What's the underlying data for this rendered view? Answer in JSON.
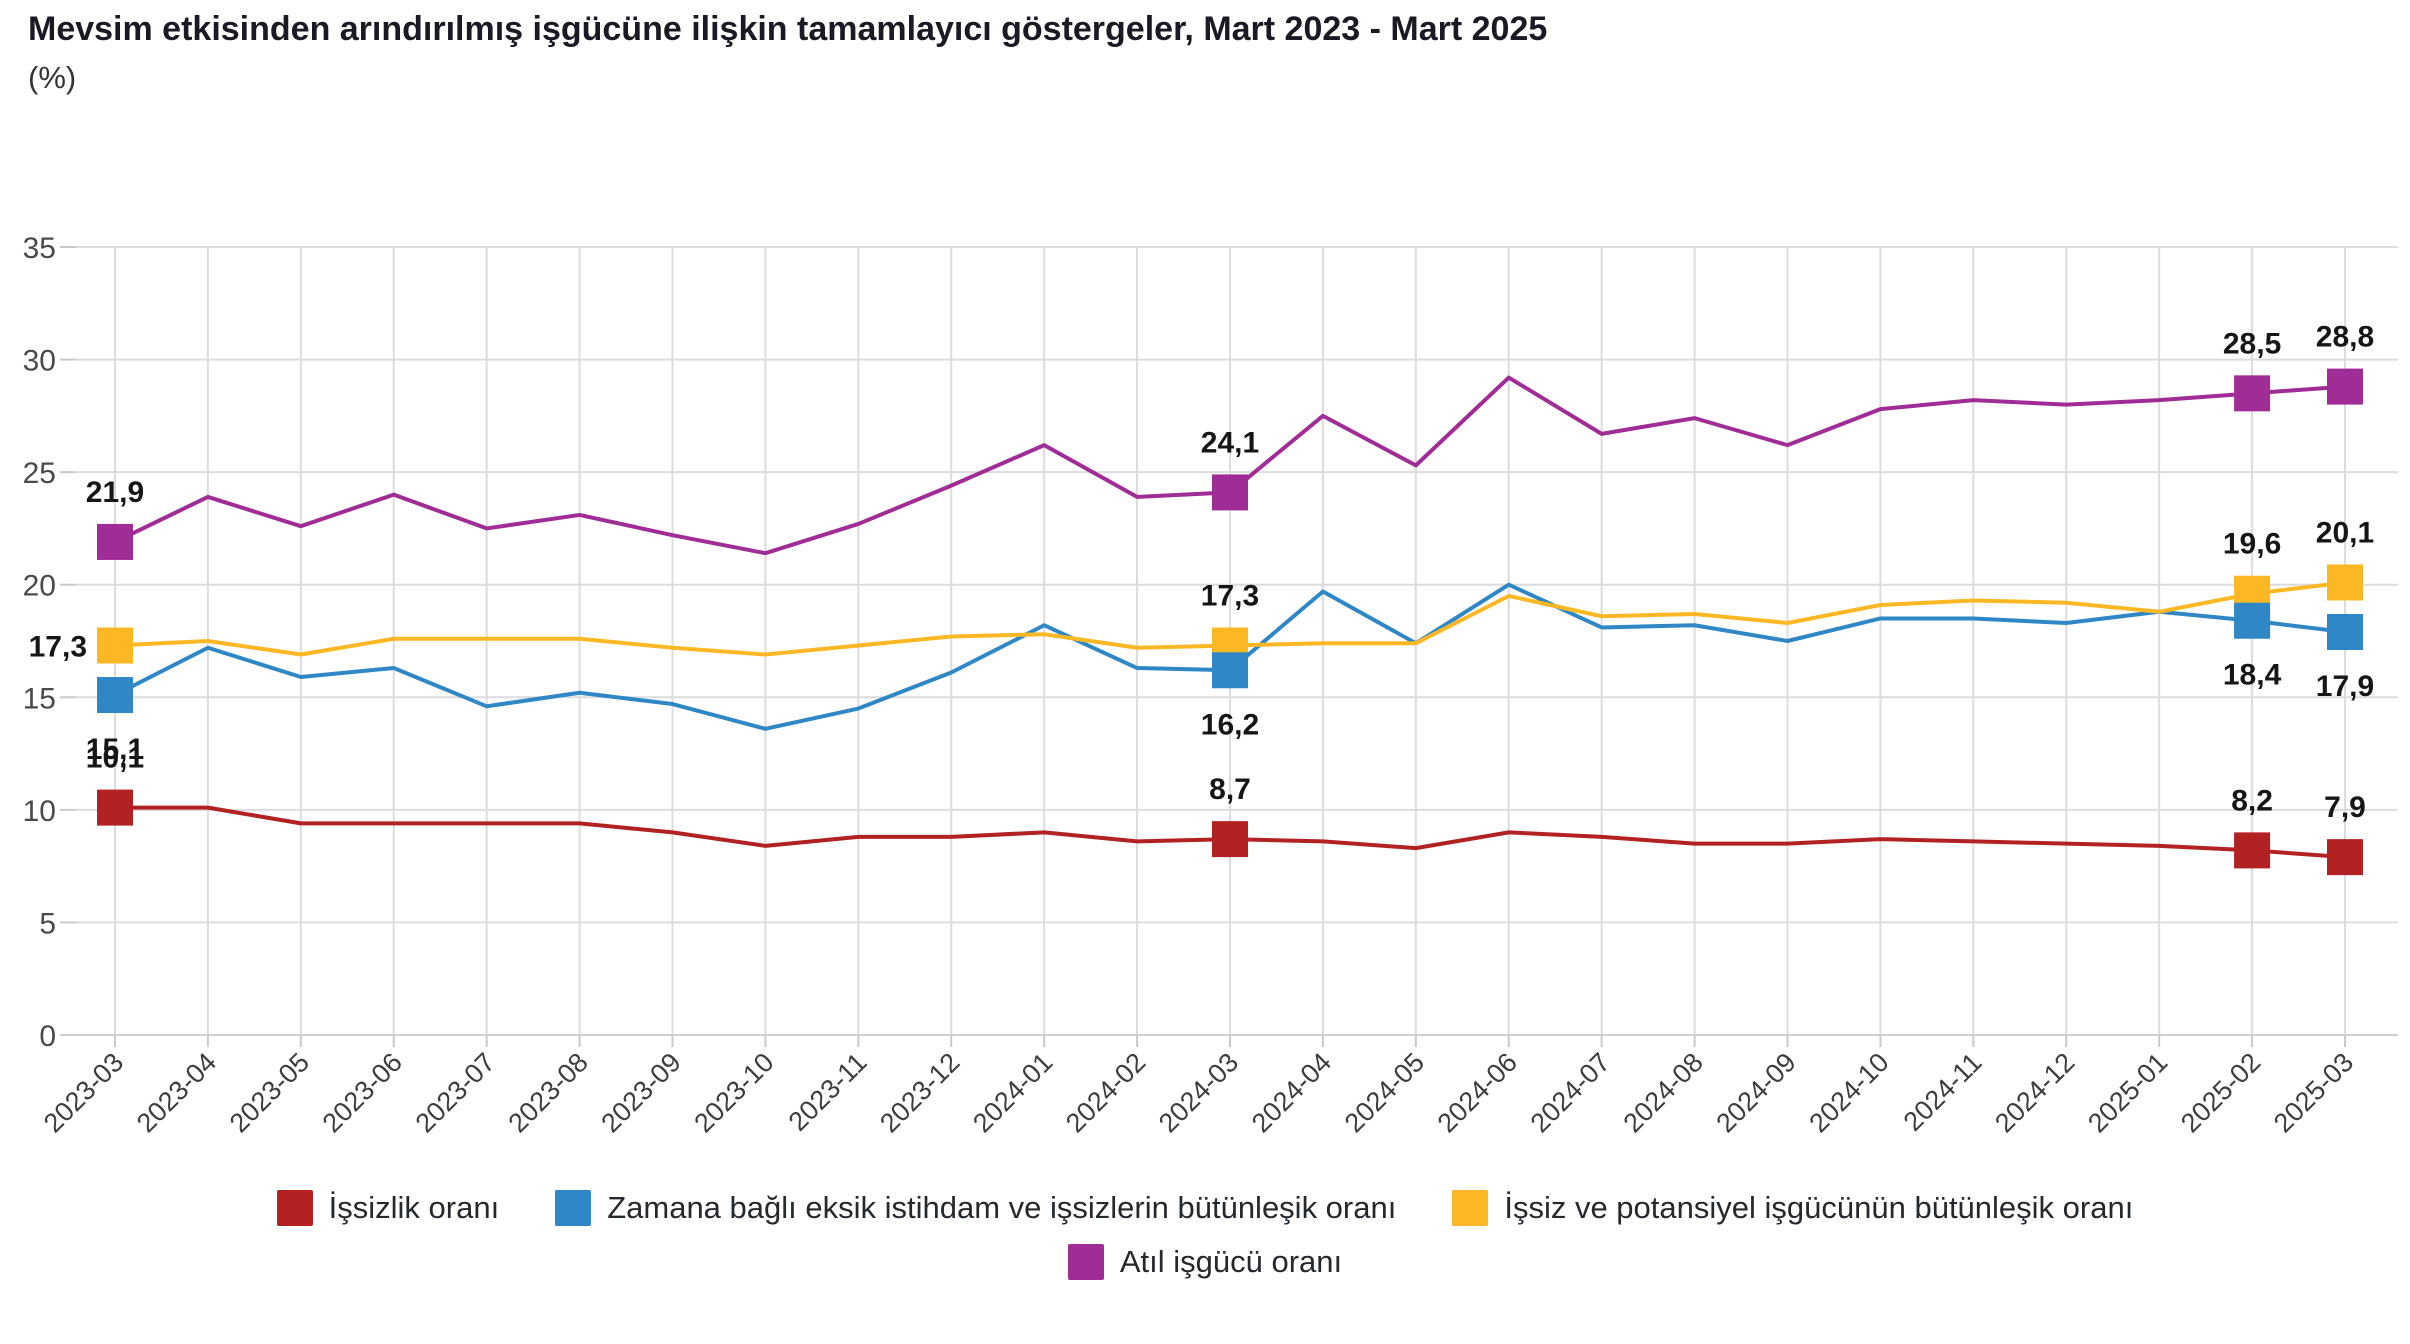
{
  "title": "Mevsim etkisinden arındırılmış işgücüne ilişkin tamamlayıcı göstergeler, Mart 2023 - Mart 2025",
  "subtitle": "(%)",
  "colors": {
    "grid": "#dcdcdc",
    "axis_line": "#cfcfcf",
    "tick": "#c9c9c9",
    "y_tick_text": "#4a4a4a",
    "x_tick_text": "#3d3d3d",
    "data_label_text": "#161616"
  },
  "chart_data": {
    "type": "line",
    "x": [
      "2023-03",
      "2023-04",
      "2023-05",
      "2023-06",
      "2023-07",
      "2023-08",
      "2023-09",
      "2023-10",
      "2023-11",
      "2023-12",
      "2024-01",
      "2024-02",
      "2024-03",
      "2024-04",
      "2024-05",
      "2024-06",
      "2024-07",
      "2024-08",
      "2024-09",
      "2024-10",
      "2024-11",
      "2024-12",
      "2025-01",
      "2025-02",
      "2025-03"
    ],
    "ylim": [
      0,
      35
    ],
    "yticks": [
      0,
      5,
      10,
      15,
      20,
      25,
      30,
      35
    ],
    "grid": true,
    "legend_position": "bottom",
    "series": [
      {
        "name": "İşsizlik oranı",
        "color": "#b22222",
        "values": [
          10.1,
          10.1,
          9.4,
          9.4,
          9.4,
          9.4,
          9.0,
          8.4,
          8.8,
          8.8,
          9.0,
          8.6,
          8.7,
          8.6,
          8.3,
          9.0,
          8.8,
          8.5,
          8.5,
          8.7,
          8.6,
          8.5,
          8.4,
          8.2,
          7.9
        ]
      },
      {
        "name": "Zamana bağlı eksik istihdam ve işsizlerin bütünleşik oranı",
        "color": "#2f87c5",
        "values": [
          15.1,
          17.2,
          15.9,
          16.3,
          14.6,
          15.2,
          14.7,
          13.6,
          14.5,
          16.1,
          18.2,
          16.3,
          16.2,
          19.7,
          17.4,
          20.0,
          18.1,
          18.2,
          17.5,
          18.5,
          18.5,
          18.3,
          18.8,
          18.4,
          17.9
        ]
      },
      {
        "name": "İşsiz ve potansiyel işgücünün bütünleşik oranı",
        "color": "#fbb824",
        "values": [
          17.3,
          17.5,
          16.9,
          17.6,
          17.6,
          17.6,
          17.2,
          16.9,
          17.3,
          17.7,
          17.8,
          17.2,
          17.3,
          17.4,
          17.4,
          19.5,
          18.6,
          18.7,
          18.3,
          19.1,
          19.3,
          19.2,
          18.8,
          19.6,
          20.1
        ]
      },
      {
        "name": "Atıl işgücü oranı",
        "color": "#a02c96",
        "values": [
          21.9,
          23.9,
          22.6,
          24.0,
          22.5,
          23.1,
          22.2,
          21.4,
          22.7,
          24.4,
          26.2,
          23.9,
          24.1,
          27.5,
          25.3,
          29.2,
          26.7,
          27.4,
          26.2,
          27.8,
          28.2,
          28.0,
          28.2,
          28.5,
          28.8
        ]
      }
    ],
    "annotated_points": [
      {
        "series": 3,
        "x_index": 0,
        "label": "21,9",
        "placement": "above"
      },
      {
        "series": 2,
        "x_index": 0,
        "label": "17,3",
        "placement": "left"
      },
      {
        "series": 1,
        "x_index": 0,
        "label": "15,1",
        "placement": "below"
      },
      {
        "series": 0,
        "x_index": 0,
        "label": "10,1",
        "placement": "above"
      },
      {
        "series": 3,
        "x_index": 12,
        "label": "24,1",
        "placement": "above"
      },
      {
        "series": 2,
        "x_index": 12,
        "label": "17,3",
        "placement": "above"
      },
      {
        "series": 1,
        "x_index": 12,
        "label": "16,2",
        "placement": "below"
      },
      {
        "series": 0,
        "x_index": 12,
        "label": "8,7",
        "placement": "above"
      },
      {
        "series": 3,
        "x_index": 23,
        "label": "28,5",
        "placement": "above"
      },
      {
        "series": 2,
        "x_index": 23,
        "label": "19,6",
        "placement": "above"
      },
      {
        "series": 1,
        "x_index": 23,
        "label": "18,4",
        "placement": "below"
      },
      {
        "series": 0,
        "x_index": 23,
        "label": "8,2",
        "placement": "above"
      },
      {
        "series": 3,
        "x_index": 24,
        "label": "28,8",
        "placement": "above"
      },
      {
        "series": 2,
        "x_index": 24,
        "label": "20,1",
        "placement": "above"
      },
      {
        "series": 1,
        "x_index": 24,
        "label": "17,9",
        "placement": "below"
      },
      {
        "series": 0,
        "x_index": 24,
        "label": "7,9",
        "placement": "above"
      }
    ],
    "legend_rows": [
      [
        0,
        1,
        2
      ],
      [
        3
      ]
    ]
  }
}
